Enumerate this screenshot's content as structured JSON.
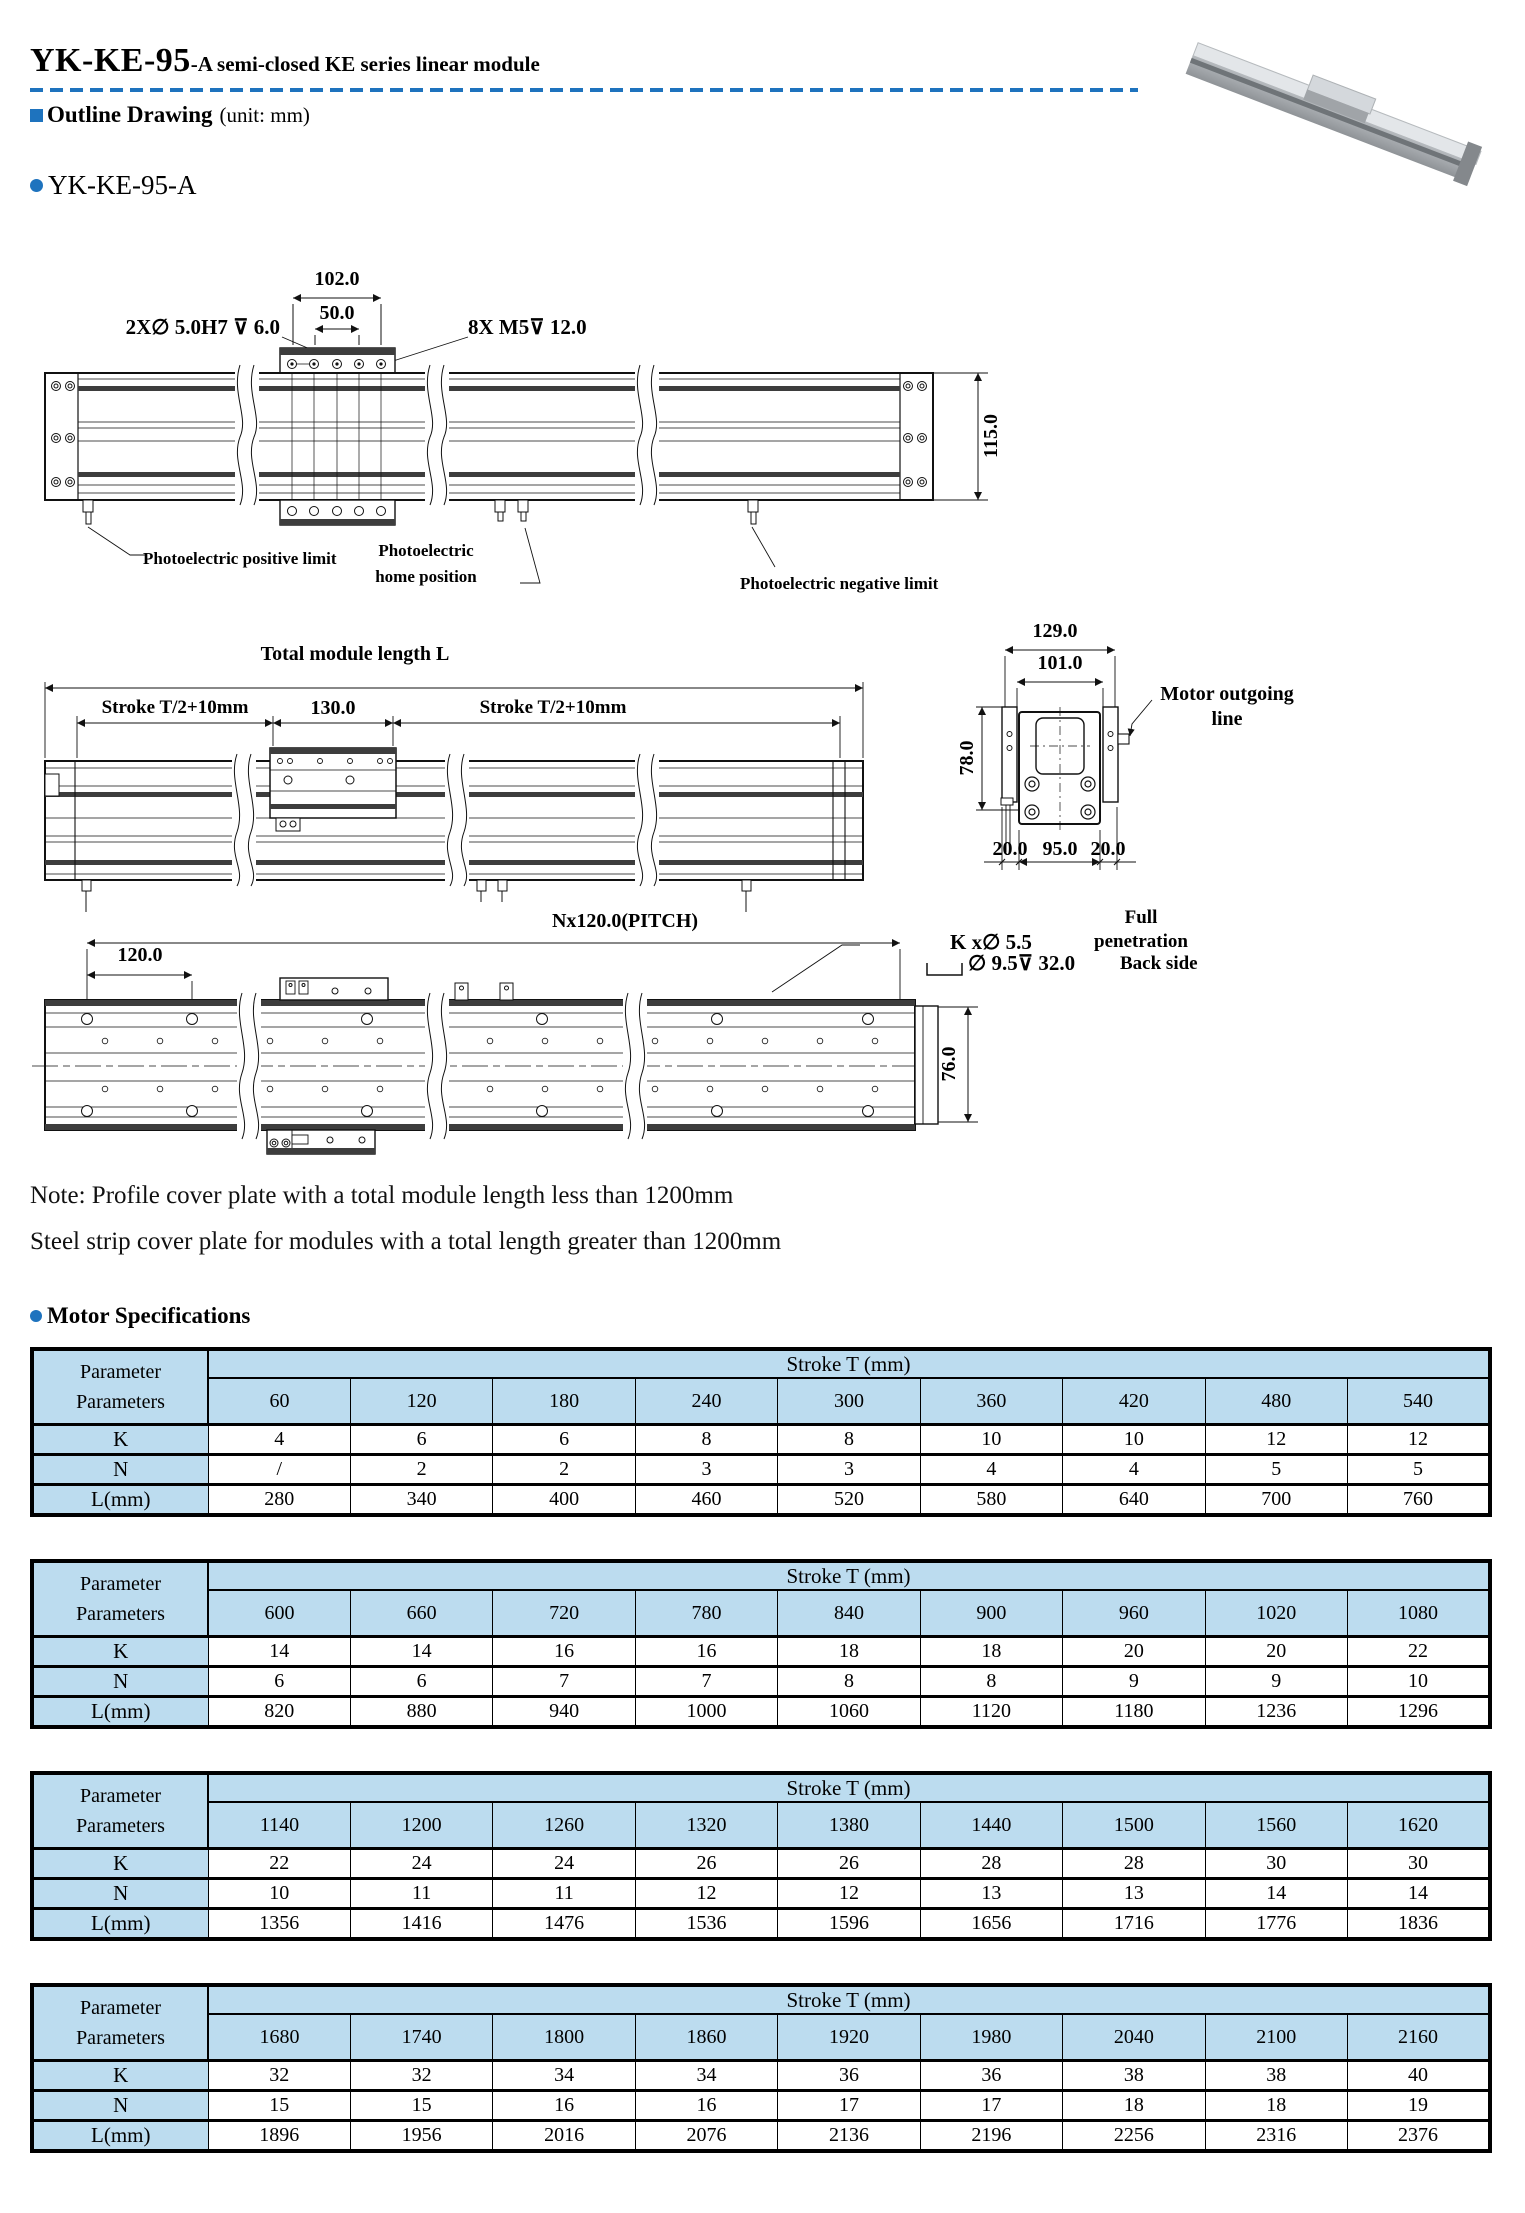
{
  "colors": {
    "accent": "#1E73BE",
    "table_header_bg": "#BCDCEF"
  },
  "header": {
    "title_main": "YK-KE-95",
    "title_sub": "-A semi-closed KE series linear module",
    "outline_heading": "Outline Drawing",
    "outline_unit": "(unit: mm)",
    "model": "YK-KE-95-A"
  },
  "drawing_top_view": {
    "dim_width_outer": "102.0",
    "dim_width_inner": "50.0",
    "callout_left": "2X∅  5.0H7 ⊽ 6.0",
    "callout_right": "8X M5⊽ 12.0",
    "dim_height": "115.0",
    "label_positive": "Photoelectric positive limit",
    "label_home": "Photoelectric home position",
    "label_negative": "Photoelectric negative limit"
  },
  "drawing_side_view": {
    "label_total_length": "Total module length L",
    "dim_stroke_left": "Stroke T/2+10mm",
    "dim_carriage": "130.0",
    "dim_stroke_right": "Stroke T/2+10mm"
  },
  "drawing_section_view": {
    "dim_width_outer": "129.0",
    "dim_width_inner": "101.0",
    "label_motor_line": "Motor outgoing line",
    "dim_height": "78.0",
    "dim_bottom_left": "20.0",
    "dim_bottom_center": "95.0",
    "dim_bottom_right": "20.0"
  },
  "drawing_bottom_view": {
    "dim_pitch": "Nx120.0(PITCH)",
    "dim_first_pitch": "120.0",
    "callout_holes": "K x∅ 5.5",
    "callout_full_penetration": "Full penetration",
    "callout_counterbore": "∅  9.5⊽ 32.0",
    "callout_back_side": "Back side",
    "dim_height": "76.0"
  },
  "notes": {
    "line1": "Note: Profile cover plate with a total module length less than 1200mm",
    "line2": "Steel strip cover plate for modules with a total length greater than 1200mm"
  },
  "motor_specifications": {
    "heading": "Motor Specifications",
    "param_header": "Parameter\nParameters",
    "stroke_header": "Stroke T (mm)",
    "tables": [
      {
        "strokes": [
          "60",
          "120",
          "180",
          "240",
          "300",
          "360",
          "420",
          "480",
          "540"
        ],
        "rows": [
          {
            "label": "K",
            "values": [
              "4",
              "6",
              "6",
              "8",
              "8",
              "10",
              "10",
              "12",
              "12"
            ]
          },
          {
            "label": "N",
            "values": [
              "/",
              "2",
              "2",
              "3",
              "3",
              "4",
              "4",
              "5",
              "5"
            ]
          },
          {
            "label": "L(mm)",
            "values": [
              "280",
              "340",
              "400",
              "460",
              "520",
              "580",
              "640",
              "700",
              "760"
            ]
          }
        ]
      },
      {
        "strokes": [
          "600",
          "660",
          "720",
          "780",
          "840",
          "900",
          "960",
          "1020",
          "1080"
        ],
        "rows": [
          {
            "label": "K",
            "values": [
              "14",
              "14",
              "16",
              "16",
              "18",
              "18",
              "20",
              "20",
              "22"
            ]
          },
          {
            "label": "N",
            "values": [
              "6",
              "6",
              "7",
              "7",
              "8",
              "8",
              "9",
              "9",
              "10"
            ]
          },
          {
            "label": "L(mm)",
            "values": [
              "820",
              "880",
              "940",
              "1000",
              "1060",
              "1120",
              "1180",
              "1236",
              "1296"
            ]
          }
        ]
      },
      {
        "strokes": [
          "1140",
          "1200",
          "1260",
          "1320",
          "1380",
          "1440",
          "1500",
          "1560",
          "1620"
        ],
        "rows": [
          {
            "label": "K",
            "values": [
              "22",
              "24",
              "24",
              "26",
              "26",
              "28",
              "28",
              "30",
              "30"
            ]
          },
          {
            "label": "N",
            "values": [
              "10",
              "11",
              "11",
              "12",
              "12",
              "13",
              "13",
              "14",
              "14"
            ]
          },
          {
            "label": "L(mm)",
            "values": [
              "1356",
              "1416",
              "1476",
              "1536",
              "1596",
              "1656",
              "1716",
              "1776",
              "1836"
            ]
          }
        ]
      },
      {
        "strokes": [
          "1680",
          "1740",
          "1800",
          "1860",
          "1920",
          "1980",
          "2040",
          "2100",
          "2160"
        ],
        "rows": [
          {
            "label": "K",
            "values": [
              "32",
              "32",
              "34",
              "34",
              "36",
              "36",
              "38",
              "38",
              "40"
            ]
          },
          {
            "label": "N",
            "values": [
              "15",
              "15",
              "16",
              "16",
              "17",
              "17",
              "18",
              "18",
              "19"
            ]
          },
          {
            "label": "L(mm)",
            "values": [
              "1896",
              "1956",
              "2016",
              "2076",
              "2136",
              "2196",
              "2256",
              "2316",
              "2376"
            ]
          }
        ]
      }
    ]
  }
}
